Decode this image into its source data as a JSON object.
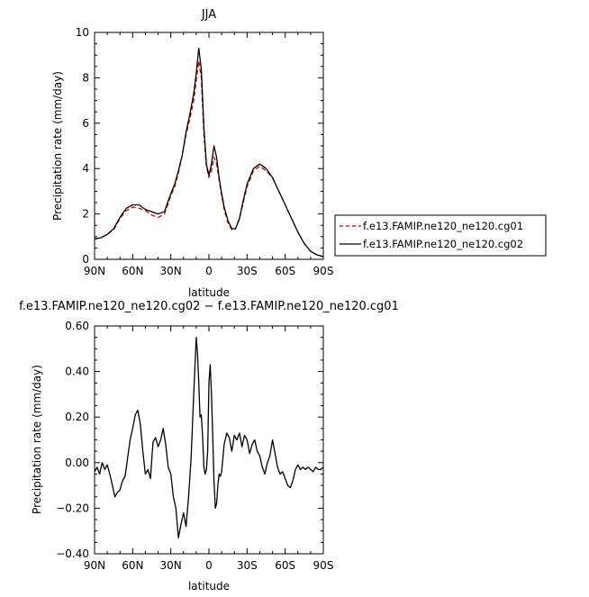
{
  "chart_data": [
    {
      "type": "line",
      "title": "JJA",
      "xlabel": "latitude",
      "ylabel": "Precipitation rate (mm/day)",
      "xlim": [
        -90,
        90
      ],
      "ylim": [
        0,
        10
      ],
      "xticks": [
        -90,
        -60,
        -30,
        0,
        30,
        60,
        90
      ],
      "xtick_labels": [
        "90N",
        "60N",
        "30N",
        "0",
        "30S",
        "60S",
        "90S"
      ],
      "yticks": [
        0,
        2,
        4,
        6,
        8,
        10
      ],
      "ytick_labels": [
        "0",
        "2",
        "4",
        "6",
        "8",
        "10"
      ],
      "legend": "right",
      "series": [
        {
          "name": "f.e13.FAMIP.ne120_ne120.cg01",
          "color": "#cc0000",
          "dash": "dashed",
          "x": [
            -90,
            -85,
            -80,
            -75,
            -70,
            -65,
            -60,
            -55,
            -50,
            -45,
            -40,
            -35,
            -30,
            -27,
            -24,
            -21,
            -18,
            -15,
            -12,
            -10,
            -8,
            -6,
            -4,
            -2,
            0,
            2,
            4,
            6,
            8,
            10,
            12,
            15,
            18,
            21,
            24,
            27,
            30,
            35,
            40,
            45,
            50,
            55,
            60,
            65,
            70,
            75,
            80,
            85,
            90
          ],
          "y": [
            0.9,
            0.95,
            1.1,
            1.3,
            1.8,
            2.15,
            2.3,
            2.25,
            2.15,
            1.95,
            1.85,
            2.0,
            2.8,
            3.2,
            3.8,
            4.6,
            5.5,
            6.2,
            7.0,
            7.9,
            8.75,
            8.0,
            5.5,
            4.1,
            3.6,
            3.9,
            4.5,
            4.2,
            3.5,
            2.8,
            2.2,
            1.6,
            1.3,
            1.35,
            1.8,
            2.5,
            3.2,
            3.9,
            4.1,
            3.9,
            3.6,
            3.0,
            2.4,
            1.8,
            1.2,
            0.7,
            0.35,
            0.2,
            0.12
          ]
        },
        {
          "name": "f.e13.FAMIP.ne120_ne120.cg02",
          "color": "#000000",
          "dash": "solid",
          "x": [
            -90,
            -85,
            -80,
            -75,
            -70,
            -65,
            -60,
            -55,
            -50,
            -45,
            -40,
            -35,
            -30,
            -27,
            -24,
            -21,
            -18,
            -15,
            -12,
            -10,
            -8,
            -6,
            -4,
            -2,
            0,
            2,
            4,
            6,
            8,
            10,
            12,
            15,
            18,
            21,
            24,
            27,
            30,
            35,
            40,
            45,
            50,
            55,
            60,
            65,
            70,
            75,
            80,
            85,
            90
          ],
          "y": [
            0.9,
            0.95,
            1.1,
            1.35,
            1.85,
            2.25,
            2.4,
            2.4,
            2.2,
            2.1,
            2.0,
            2.1,
            2.9,
            3.3,
            3.9,
            4.6,
            5.6,
            6.4,
            7.3,
            8.2,
            9.3,
            8.4,
            5.8,
            4.2,
            3.7,
            4.2,
            5.0,
            4.5,
            3.6,
            2.9,
            2.3,
            1.7,
            1.35,
            1.35,
            1.8,
            2.6,
            3.3,
            4.0,
            4.2,
            4.0,
            3.6,
            3.0,
            2.4,
            1.8,
            1.2,
            0.7,
            0.35,
            0.2,
            0.12
          ]
        }
      ]
    },
    {
      "type": "line",
      "title": "f.e13.FAMIP.ne120_ne120.cg02 − f.e13.FAMIP.ne120_ne120.cg01",
      "xlabel": "latitude",
      "ylabel": "Precipitation rate (mm/day)",
      "xlim": [
        -90,
        90
      ],
      "ylim": [
        -0.4,
        0.6
      ],
      "xticks": [
        -90,
        -60,
        -30,
        0,
        30,
        60,
        90
      ],
      "xtick_labels": [
        "90N",
        "60N",
        "30N",
        "0",
        "30S",
        "60S",
        "90S"
      ],
      "yticks": [
        -0.4,
        -0.2,
        0.0,
        0.2,
        0.4,
        0.6
      ],
      "ytick_labels": [
        "−0.40",
        "−0.20",
        "0.00",
        "0.20",
        "0.40",
        "0.60"
      ],
      "series": [
        {
          "name": "",
          "color": "#000000",
          "dash": "solid",
          "x": [
            -90,
            -88,
            -86,
            -84,
            -82,
            -80,
            -78,
            -76,
            -74,
            -72,
            -70,
            -68,
            -66,
            -64,
            -62,
            -60,
            -58,
            -56,
            -54,
            -52,
            -50,
            -48,
            -46,
            -44,
            -42,
            -40,
            -38,
            -36,
            -34,
            -32,
            -30,
            -28,
            -26,
            -24,
            -22,
            -20,
            -18,
            -16,
            -14,
            -12,
            -10,
            -9,
            -8,
            -7,
            -6,
            -5,
            -4,
            -3,
            -2,
            -1,
            0,
            1,
            2,
            3,
            4,
            5,
            6,
            7,
            8,
            9,
            10,
            11,
            12,
            14,
            16,
            18,
            20,
            22,
            24,
            26,
            28,
            30,
            32,
            34,
            36,
            38,
            40,
            42,
            44,
            46,
            48,
            50,
            52,
            54,
            56,
            58,
            60,
            62,
            64,
            66,
            68,
            70,
            72,
            74,
            76,
            78,
            80,
            82,
            84,
            86,
            88,
            90
          ],
          "y": [
            -0.04,
            -0.02,
            -0.05,
            0.0,
            -0.03,
            -0.01,
            -0.05,
            -0.1,
            -0.15,
            -0.13,
            -0.12,
            -0.08,
            -0.06,
            0.02,
            0.1,
            0.15,
            0.21,
            0.23,
            0.17,
            0.05,
            -0.05,
            -0.03,
            -0.07,
            0.09,
            0.11,
            0.07,
            0.1,
            0.15,
            0.08,
            -0.02,
            -0.05,
            -0.15,
            -0.2,
            -0.33,
            -0.27,
            -0.22,
            -0.28,
            -0.15,
            0.02,
            0.3,
            0.55,
            0.48,
            0.35,
            0.2,
            0.21,
            0.12,
            -0.02,
            -0.05,
            -0.03,
            0.05,
            0.35,
            0.43,
            0.3,
            0.12,
            -0.08,
            -0.2,
            -0.18,
            -0.1,
            -0.05,
            -0.06,
            -0.04,
            0.02,
            0.08,
            0.13,
            0.11,
            0.05,
            0.12,
            0.1,
            0.13,
            0.07,
            0.12,
            0.1,
            0.04,
            0.08,
            0.1,
            0.05,
            0.03,
            -0.02,
            -0.05,
            0.0,
            0.03,
            0.1,
            0.04,
            -0.02,
            -0.05,
            -0.04,
            -0.07,
            -0.1,
            -0.11,
            -0.08,
            -0.03,
            -0.01,
            -0.03,
            -0.02,
            -0.03,
            -0.02,
            -0.03,
            -0.04,
            -0.02,
            -0.03,
            -0.03,
            -0.02
          ]
        }
      ]
    }
  ]
}
